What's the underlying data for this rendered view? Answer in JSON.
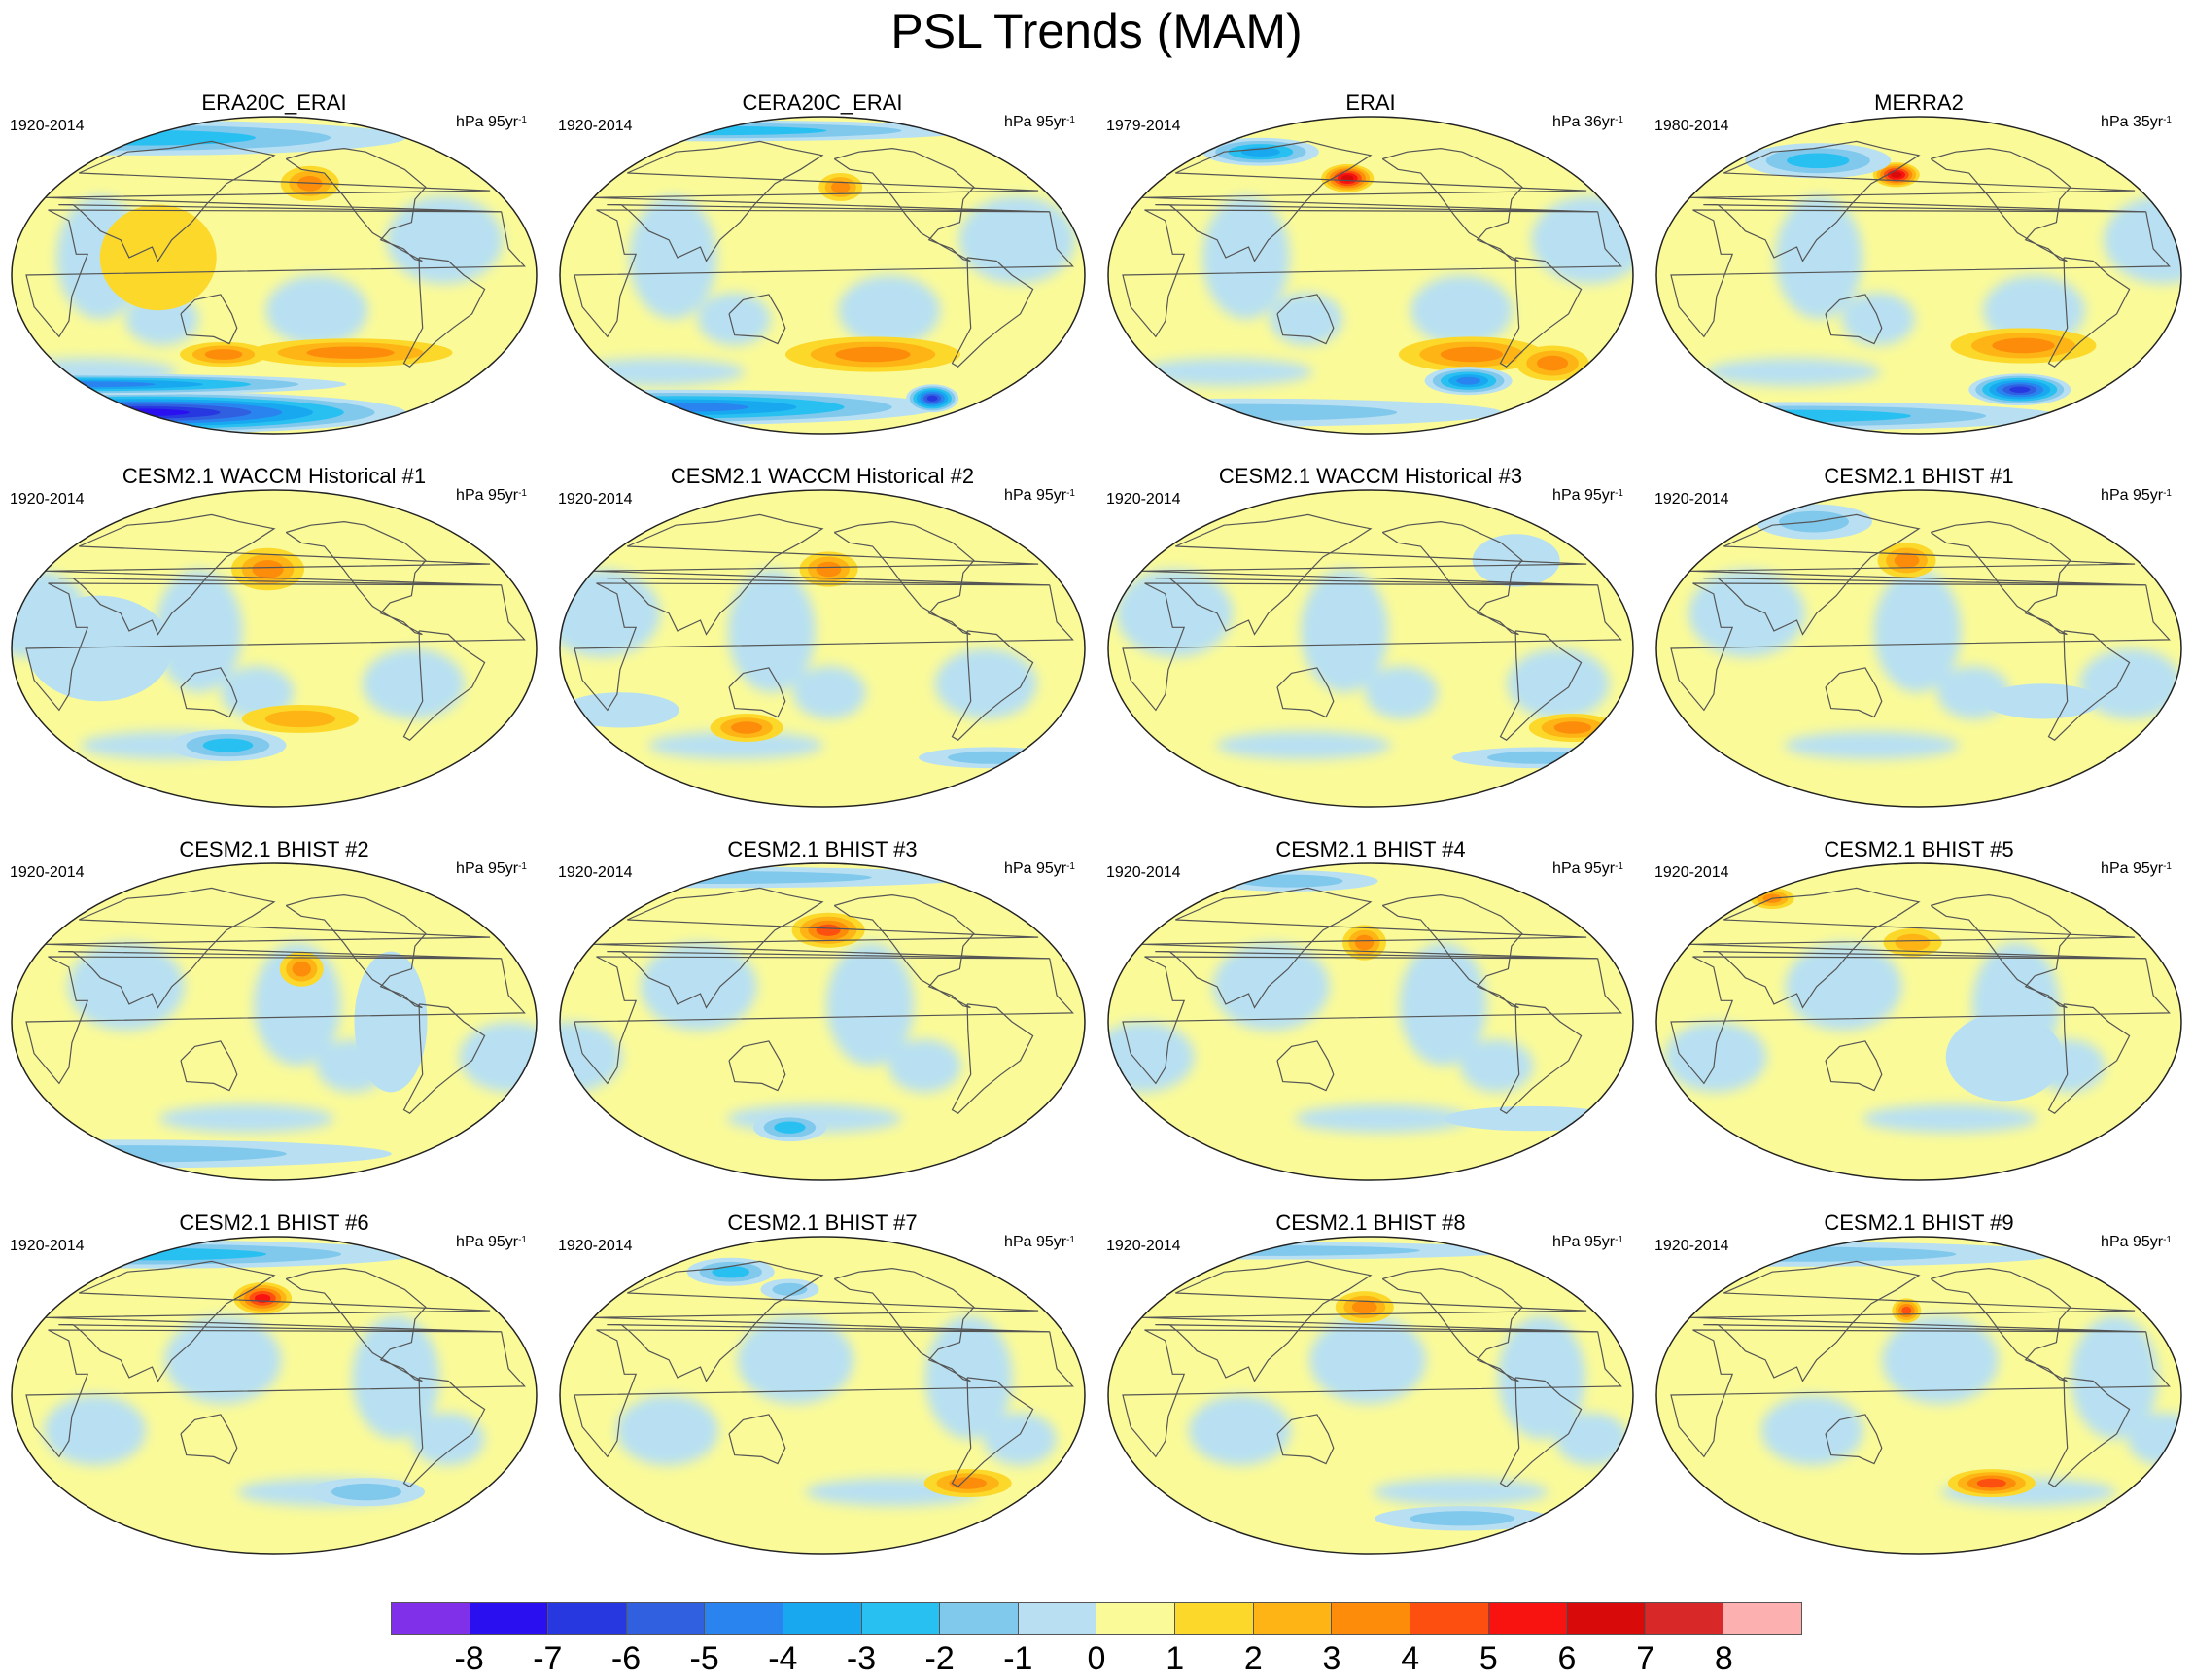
{
  "title": "PSL Trends (MAM)",
  "panels": [
    {
      "title": "ERA20C_ERAI",
      "period": "1920-2014",
      "units_base": "hPa 95yr",
      "units_exp": "-1",
      "blobs": [
        {
          "lon": 0,
          "lat": -78,
          "rx": 180,
          "ry": 12,
          "level": -8
        },
        {
          "lon": 0,
          "lat": -62,
          "rx": 180,
          "ry": 6,
          "level": -5
        },
        {
          "lon": -120,
          "lat": -44,
          "rx": 70,
          "ry": 8,
          "level": 2
        },
        {
          "lon": 140,
          "lat": -45,
          "rx": 30,
          "ry": 7,
          "level": 2
        },
        {
          "lon": -150,
          "lat": 52,
          "rx": 20,
          "ry": 10,
          "level": 2
        },
        {
          "lon": 0,
          "lat": 78,
          "rx": 180,
          "ry": 10,
          "level": -3
        },
        {
          "lon": 100,
          "lat": 10,
          "rx": 40,
          "ry": 30,
          "level": 0
        }
      ]
    },
    {
      "title": "CERA20C_ERAI",
      "period": "1920-2014",
      "units_base": "hPa 95yr",
      "units_exp": "-1",
      "blobs": [
        {
          "lon": 0,
          "lat": -75,
          "rx": 180,
          "ry": 10,
          "level": -5
        },
        {
          "lon": -60,
          "lat": -70,
          "rx": 18,
          "ry": 8,
          "level": -7
        },
        {
          "lon": -140,
          "lat": -45,
          "rx": 60,
          "ry": 10,
          "level": 2
        },
        {
          "lon": -165,
          "lat": 50,
          "rx": 15,
          "ry": 8,
          "level": 2
        },
        {
          "lon": 0,
          "lat": 82,
          "rx": 180,
          "ry": 6,
          "level": -3
        }
      ]
    },
    {
      "title": "ERAI",
      "period": "1979-2014",
      "units_base": "hPa 36yr",
      "units_exp": "-1",
      "blobs": [
        {
          "lon": 160,
          "lat": 55,
          "rx": 18,
          "ry": 8,
          "level": 5
        },
        {
          "lon": -100,
          "lat": -45,
          "rx": 50,
          "ry": 10,
          "level": 2
        },
        {
          "lon": -90,
          "lat": -60,
          "rx": 30,
          "ry": 8,
          "level": -5
        },
        {
          "lon": -30,
          "lat": -50,
          "rx": 25,
          "ry": 10,
          "level": 2
        },
        {
          "lon": 60,
          "lat": 70,
          "rx": 40,
          "ry": 8,
          "level": -4
        },
        {
          "lon": 0,
          "lat": -78,
          "rx": 180,
          "ry": 8,
          "level": -2
        }
      ]
    },
    {
      "title": "MERRA2",
      "period": "1980-2014",
      "units_base": "hPa 35yr",
      "units_exp": "-1",
      "blobs": [
        {
          "lon": 160,
          "lat": 57,
          "rx": 16,
          "ry": 7,
          "level": 5
        },
        {
          "lon": -80,
          "lat": -65,
          "rx": 35,
          "ry": 9,
          "level": -7
        },
        {
          "lon": -100,
          "lat": -40,
          "rx": 50,
          "ry": 10,
          "level": 2
        },
        {
          "lon": 80,
          "lat": 65,
          "rx": 50,
          "ry": 10,
          "level": -3
        },
        {
          "lon": 0,
          "lat": -80,
          "rx": 180,
          "ry": 8,
          "level": -3
        }
      ]
    },
    {
      "title": "CESM2.1 WACCM Historical #1",
      "period": "1920-2014",
      "units_base": "hPa 95yr",
      "units_exp": "-1",
      "blobs": [
        {
          "lon": 175,
          "lat": 45,
          "rx": 25,
          "ry": 12,
          "level": 2
        },
        {
          "lon": 140,
          "lat": -55,
          "rx": 40,
          "ry": 9,
          "level": -3
        },
        {
          "lon": -160,
          "lat": -40,
          "rx": 40,
          "ry": 8,
          "level": 1
        },
        {
          "lon": 60,
          "lat": 0,
          "rx": 50,
          "ry": 30,
          "level": -1
        }
      ]
    },
    {
      "title": "CESM2.1 WACCM Historical #2",
      "period": "1920-2014",
      "units_base": "hPa 95yr",
      "units_exp": "-1",
      "blobs": [
        {
          "lon": -175,
          "lat": 45,
          "rx": 20,
          "ry": 10,
          "level": 2
        },
        {
          "lon": 120,
          "lat": -45,
          "rx": 25,
          "ry": 8,
          "level": 2
        },
        {
          "lon": 30,
          "lat": -35,
          "rx": 40,
          "ry": 10,
          "level": -1
        },
        {
          "lon": -20,
          "lat": -62,
          "rx": 50,
          "ry": 6,
          "level": -2
        }
      ]
    },
    {
      "title": "CESM2.1 WACCM Historical #3",
      "period": "1920-2014",
      "units_base": "hPa 95yr",
      "units_exp": "-1",
      "blobs": [
        {
          "lon": -20,
          "lat": -45,
          "rx": 30,
          "ry": 8,
          "level": 2
        },
        {
          "lon": -20,
          "lat": -62,
          "rx": 60,
          "ry": 6,
          "level": -2
        },
        {
          "lon": -60,
          "lat": 50,
          "rx": 30,
          "ry": 15,
          "level": -1
        }
      ]
    },
    {
      "title": "CESM2.1 BHIST #1",
      "period": "1920-2014",
      "units_base": "hPa 95yr",
      "units_exp": "-1",
      "blobs": [
        {
          "lon": 170,
          "lat": 50,
          "rx": 20,
          "ry": 10,
          "level": 2
        },
        {
          "lon": 60,
          "lat": 72,
          "rx": 40,
          "ry": 10,
          "level": -2
        },
        {
          "lon": -90,
          "lat": -30,
          "rx": 40,
          "ry": 10,
          "level": -1
        }
      ]
    },
    {
      "title": "CESM2.1 BHIST #2",
      "period": "1920-2014",
      "units_base": "hPa 95yr",
      "units_exp": "-1",
      "blobs": [
        {
          "lon": -160,
          "lat": 30,
          "rx": 15,
          "ry": 10,
          "level": 2
        },
        {
          "lon": 0,
          "lat": -75,
          "rx": 180,
          "ry": 8,
          "level": -2
        },
        {
          "lon": -100,
          "lat": 0,
          "rx": 25,
          "ry": 40,
          "level": -1
        }
      ]
    },
    {
      "title": "CESM2.1 BHIST #3",
      "period": "1920-2014",
      "units_base": "hPa 95yr",
      "units_exp": "-1",
      "blobs": [
        {
          "lon": -175,
          "lat": 52,
          "rx": 25,
          "ry": 10,
          "level": 3
        },
        {
          "lon": 150,
          "lat": -60,
          "rx": 25,
          "ry": 8,
          "level": -3
        },
        {
          "lon": 0,
          "lat": 82,
          "rx": 180,
          "ry": 6,
          "level": -2
        }
      ]
    },
    {
      "title": "CESM2.1 BHIST #4",
      "period": "1920-2014",
      "units_base": "hPa 95yr",
      "units_exp": "-1",
      "blobs": [
        {
          "lon": 175,
          "lat": 45,
          "rx": 15,
          "ry": 10,
          "level": 2
        },
        {
          "lon": -40,
          "lat": -55,
          "rx": 60,
          "ry": 7,
          "level": -1
        },
        {
          "lon": 60,
          "lat": 80,
          "rx": 60,
          "ry": 6,
          "level": -2
        }
      ]
    },
    {
      "title": "CESM2.1 BHIST #5",
      "period": "1920-2014",
      "units_base": "hPa 95yr",
      "units_exp": "-1",
      "blobs": [
        {
          "lon": -120,
          "lat": -20,
          "rx": 40,
          "ry": 25,
          "level": -1
        },
        {
          "lon": 20,
          "lat": 70,
          "rx": 15,
          "ry": 6,
          "level": 2
        },
        {
          "lon": 175,
          "lat": 45,
          "rx": 20,
          "ry": 8,
          "level": 1
        }
      ]
    },
    {
      "title": "CESM2.1 BHIST #6",
      "period": "1920-2014",
      "units_base": "hPa 95yr",
      "units_exp": "-1",
      "blobs": [
        {
          "lon": 170,
          "lat": 55,
          "rx": 20,
          "ry": 9,
          "level": 4
        },
        {
          "lon": 0,
          "lat": 80,
          "rx": 180,
          "ry": 8,
          "level": -3
        },
        {
          "lon": -100,
          "lat": -55,
          "rx": 40,
          "ry": 8,
          "level": -2
        }
      ]
    },
    {
      "title": "CESM2.1 BHIST #7",
      "period": "1920-2014",
      "units_base": "hPa 95yr",
      "units_exp": "-1",
      "blobs": [
        {
          "lon": 80,
          "lat": 70,
          "rx": 30,
          "ry": 8,
          "level": -3
        },
        {
          "lon": -60,
          "lat": -50,
          "rx": 30,
          "ry": 8,
          "level": 2
        },
        {
          "lon": 150,
          "lat": 60,
          "rx": 20,
          "ry": 6,
          "level": -2
        }
      ]
    },
    {
      "title": "CESM2.1 BHIST #8",
      "period": "1920-2014",
      "units_base": "hPa 95yr",
      "units_exp": "-1",
      "blobs": [
        {
          "lon": 175,
          "lat": 50,
          "rx": 20,
          "ry": 9,
          "level": 2
        },
        {
          "lon": -80,
          "lat": -70,
          "rx": 60,
          "ry": 7,
          "level": -2
        },
        {
          "lon": 0,
          "lat": 82,
          "rx": 180,
          "ry": 5,
          "level": -2
        }
      ]
    },
    {
      "title": "CESM2.1 BHIST #9",
      "period": "1920-2014",
      "units_base": "hPa 95yr",
      "units_exp": "-1",
      "blobs": [
        {
          "lon": 170,
          "lat": 48,
          "rx": 10,
          "ry": 7,
          "level": 3
        },
        {
          "lon": -120,
          "lat": -50,
          "rx": 30,
          "ry": 8,
          "level": 3
        },
        {
          "lon": 0,
          "lat": 80,
          "rx": 180,
          "ry": 7,
          "level": -2
        }
      ]
    }
  ],
  "colorbar": {
    "colors": [
      "#8030e8",
      "#2a10f0",
      "#2838e0",
      "#3060e0",
      "#2a84f0",
      "#18a8f0",
      "#28c0f0",
      "#80c8ec",
      "#b8e0f2",
      "#fafa98",
      "#fcd82a",
      "#fdb414",
      "#fd8c0a",
      "#fd5010",
      "#f81210",
      "#d80a0a",
      "#d82828",
      "#fcb0b0"
    ],
    "labels": [
      "-8",
      "-7",
      "-6",
      "-5",
      "-4",
      "-3",
      "-2",
      "-1",
      "0",
      "1",
      "2",
      "3",
      "4",
      "5",
      "6",
      "7",
      "8"
    ]
  }
}
